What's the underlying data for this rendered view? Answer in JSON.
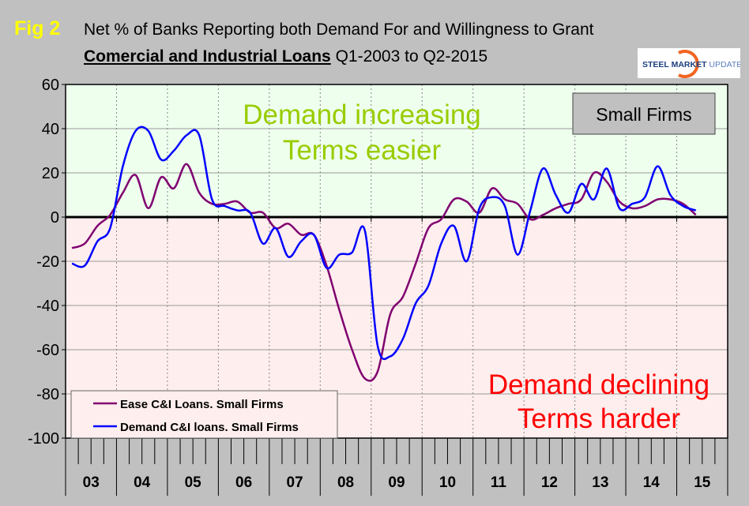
{
  "figure_label": "Fig 2",
  "title_line1": "Net % of Banks Reporting both Demand For and Willingness to Grant",
  "title_line2_bold": "Comercial and Industrial Loans",
  "title_line2_rest": " Q1-2003 to Q2-2015",
  "logo": {
    "text_a": "STEEL",
    "text_b": "MARKET",
    "text_c": "UPDATE"
  },
  "chart_data": {
    "type": "line",
    "ylim": [
      -100,
      60
    ],
    "yticks": [
      60,
      40,
      20,
      0,
      -20,
      -40,
      -60,
      -80,
      -100
    ],
    "x_start": "Q1-2003",
    "x_end": "Q2-2015",
    "frequency": "quarterly",
    "year_labels": [
      "03",
      "04",
      "05",
      "06",
      "07",
      "08",
      "09",
      "10",
      "11",
      "12",
      "13",
      "14",
      "15"
    ],
    "grid": true,
    "legend_placement": "bottom-left",
    "annotations": {
      "upper_line1": "Demand increasing",
      "upper_line2": "Terms easier",
      "lower_line1": "Demand declining",
      "lower_line2": "Terms harder",
      "box": "Small Firms"
    },
    "colors": {
      "upper_bg": "#eeffee",
      "lower_bg": "#ffeeee",
      "upper_text": "#99cc00",
      "lower_text": "#ff0000"
    },
    "series": [
      {
        "name": "Ease C&I Loans. Small Firms",
        "color": "#800070",
        "values": [
          -14,
          -12,
          -4,
          1,
          11,
          19,
          4,
          18,
          13,
          24,
          11,
          6,
          6,
          7,
          2,
          2,
          -5,
          -3,
          -8,
          -8,
          -22,
          -42,
          -60,
          -73,
          -70,
          -44,
          -36,
          -21,
          -5,
          -1,
          8,
          7,
          2,
          13,
          8,
          6,
          -1,
          1,
          4,
          6,
          8,
          20,
          16,
          7,
          4,
          5,
          8,
          8,
          6,
          1
        ]
      },
      {
        "name": "Demand C&I loans. Small Firms",
        "color": "#0000ff",
        "values": [
          -21,
          -22,
          -11,
          -5,
          23,
          39,
          39,
          26,
          30,
          37,
          37,
          8,
          5,
          3,
          2,
          -12,
          -5,
          -18,
          -11,
          -8,
          -23,
          -17,
          -16,
          -6,
          -58,
          -63,
          -55,
          -39,
          -31,
          -12,
          -4,
          -20,
          4,
          9,
          5,
          -17,
          3,
          22,
          10,
          2,
          15,
          8,
          22,
          4,
          6,
          9,
          23,
          10,
          5,
          3
        ]
      }
    ]
  }
}
